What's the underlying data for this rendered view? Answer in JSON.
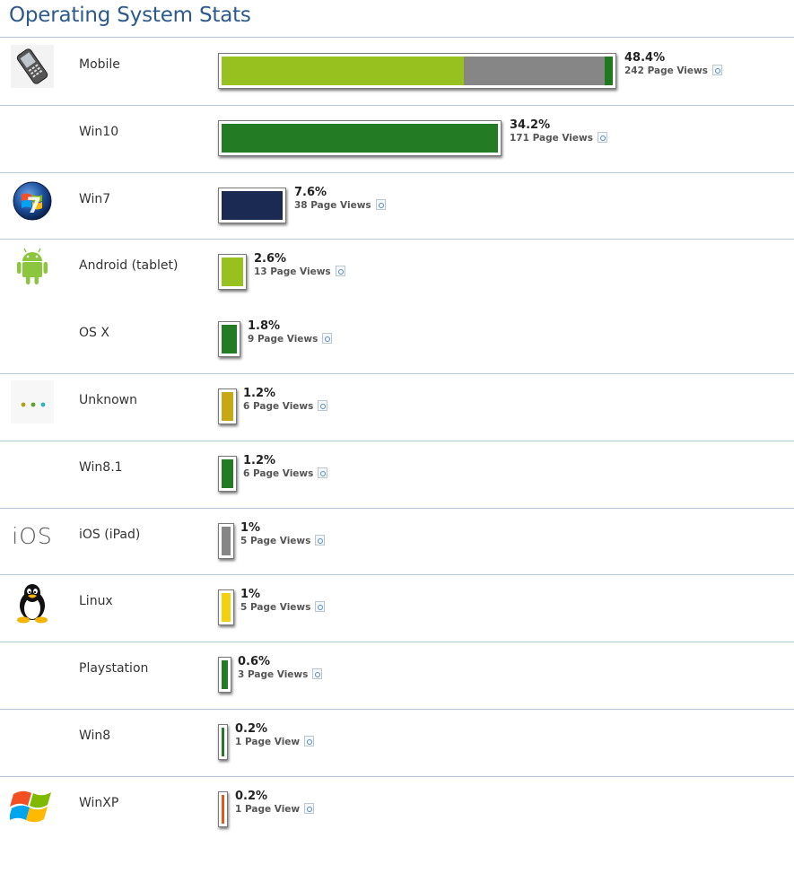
{
  "page": {
    "title": "Operating System Stats"
  },
  "rows": [
    {
      "name": "Mobile",
      "percent": "48.4%",
      "views": "242 Page Views",
      "icon": "mobile-phone-icon",
      "segments": [
        {
          "color": "#97c11f",
          "share": 0.62
        },
        {
          "color": "#868686",
          "share": 0.36
        },
        {
          "color": "#1f7a1f",
          "share": 0.02
        }
      ]
    },
    {
      "name": "Win10",
      "percent": "34.2%",
      "views": "171 Page Views",
      "icon": "",
      "segments": [
        {
          "color": "#237c23",
          "share": 1
        }
      ]
    },
    {
      "name": "Win7",
      "percent": "7.6%",
      "views": "38 Page Views",
      "icon": "windows-7-icon",
      "segments": [
        {
          "color": "#1b2a52",
          "share": 1
        }
      ]
    },
    {
      "name": "Android (tablet)",
      "percent": "2.6%",
      "views": "13 Page Views",
      "icon": "android-icon",
      "segments": [
        {
          "color": "#97c11f",
          "share": 1
        }
      ]
    },
    {
      "name": "OS X",
      "percent": "1.8%",
      "views": "9 Page Views",
      "icon": "",
      "segments": [
        {
          "color": "#237c23",
          "share": 1
        }
      ]
    },
    {
      "name": "Unknown",
      "percent": "1.2%",
      "views": "6 Page Views",
      "icon": "unknown-dots-icon",
      "segments": [
        {
          "color": "#c5a814",
          "share": 1
        }
      ]
    },
    {
      "name": "Win8.1",
      "percent": "1.2%",
      "views": "6 Page Views",
      "icon": "",
      "segments": [
        {
          "color": "#237c23",
          "share": 1
        }
      ]
    },
    {
      "name": "iOS (iPad)",
      "percent": "1%",
      "views": "5 Page Views",
      "icon": "ios-icon",
      "icon_text": "iOS",
      "segments": [
        {
          "color": "#868686",
          "share": 1
        }
      ]
    },
    {
      "name": "Linux",
      "percent": "1%",
      "views": "5 Page Views",
      "icon": "linux-tux-icon",
      "segments": [
        {
          "color": "#f2d20c",
          "share": 1
        }
      ]
    },
    {
      "name": "Playstation",
      "percent": "0.6%",
      "views": "3 Page Views",
      "icon": "",
      "segments": [
        {
          "color": "#237c23",
          "share": 1
        }
      ]
    },
    {
      "name": "Win8",
      "percent": "0.2%",
      "views": "1 Page View",
      "icon": "",
      "segments": [
        {
          "color": "#237c23",
          "share": 1
        }
      ]
    },
    {
      "name": "WinXP",
      "percent": "0.2%",
      "views": "1 Page View",
      "icon": "windows-xp-icon",
      "segments": [
        {
          "color": "#e05a1c",
          "share": 1
        }
      ]
    }
  ]
}
